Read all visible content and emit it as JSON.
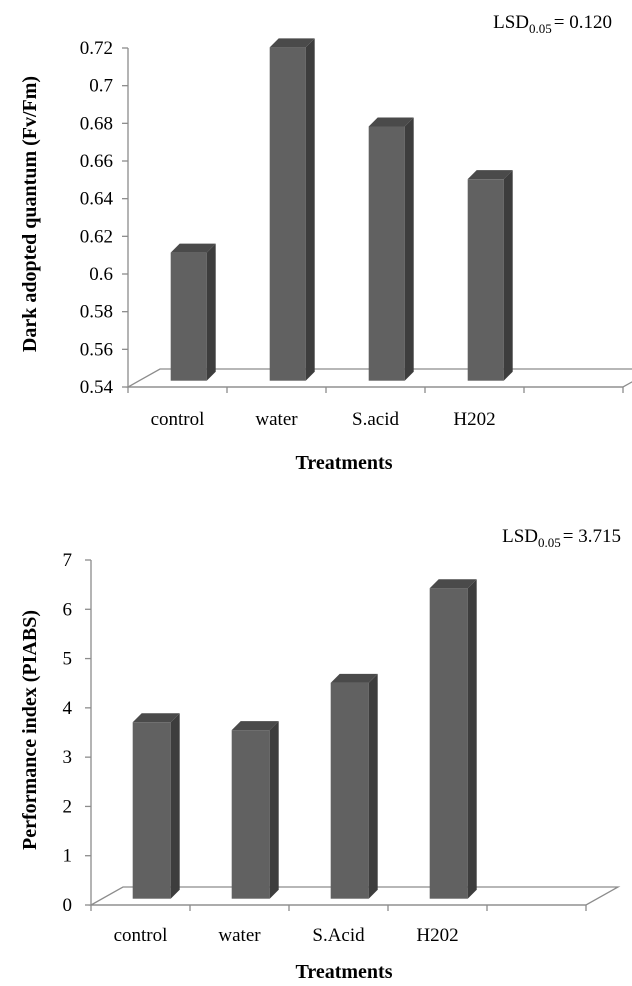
{
  "chart_data": [
    {
      "type": "bar",
      "title": "",
      "annotation": {
        "prefix": "LSD",
        "subscript": "0.05",
        "value": "= 0.120"
      },
      "xlabel": "Treatments",
      "ylabel": "Dark adopted quantum (Fv/Fm)",
      "categories": [
        "control",
        "water",
        "S.acid",
        "H202"
      ],
      "values": [
        0.608,
        0.717,
        0.675,
        0.647
      ],
      "ylim": [
        0.54,
        0.72
      ],
      "yticks": [
        "0.54",
        "0.56",
        "0.58",
        "0.6",
        "0.62",
        "0.64",
        "0.66",
        "0.68",
        "0.7",
        "0.72"
      ],
      "grid": false,
      "legend": "none",
      "bar_color": "#616161",
      "bar_side_color": "#3d3d3d",
      "bar_top_color": "#4a4a4a"
    },
    {
      "type": "bar",
      "title": "",
      "annotation": {
        "prefix": "LSD",
        "subscript": "0.05",
        "value": "= 3.715"
      },
      "xlabel": "Treatments",
      "ylabel": "Performance index (PIABS)",
      "categories": [
        "control",
        "water",
        "S.Acid",
        "H202"
      ],
      "values": [
        3.58,
        3.42,
        4.38,
        6.3
      ],
      "ylim": [
        0,
        7
      ],
      "yticks": [
        "0",
        "1",
        "2",
        "3",
        "4",
        "5",
        "6",
        "7"
      ],
      "grid": false,
      "legend": "none",
      "bar_color": "#616161",
      "bar_side_color": "#3d3d3d",
      "bar_top_color": "#4a4a4a"
    }
  ]
}
